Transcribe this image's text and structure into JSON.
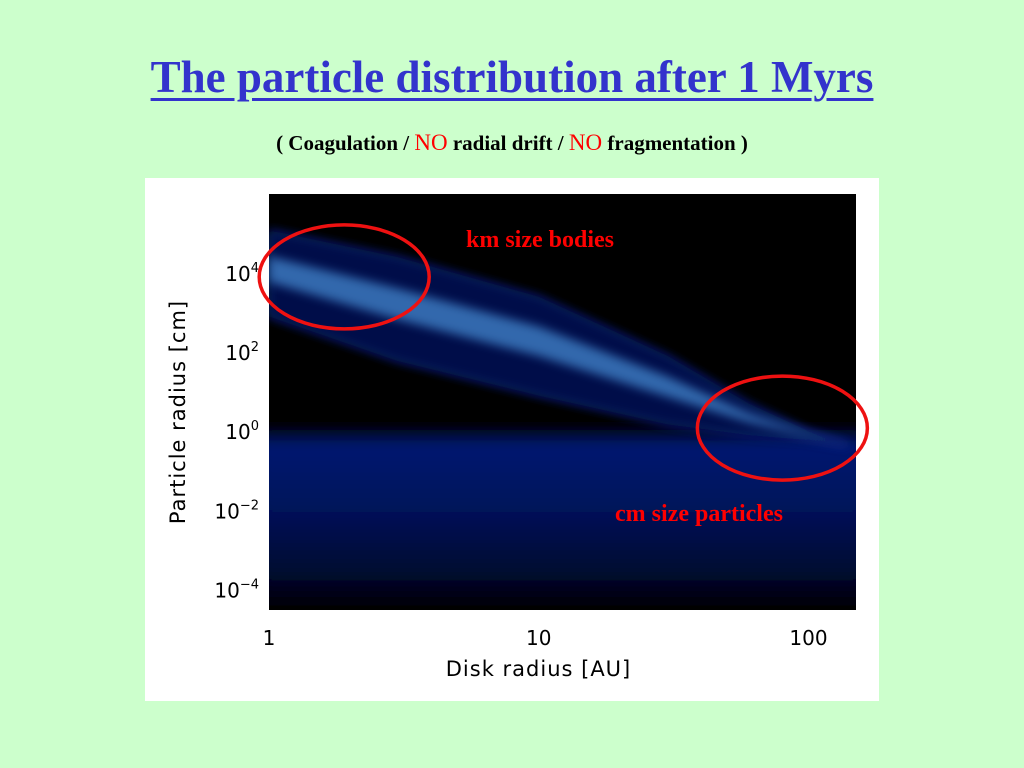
{
  "slide": {
    "title": "The particle distribution after 1 Myrs",
    "subtitle": {
      "open": "( Coagulation / ",
      "no_1": "NO",
      "mid": " radial drift / ",
      "no_2": "NO",
      "close": " fragmentation )"
    },
    "colors": {
      "background": "#ccffcc",
      "title": "#3333cc",
      "emphasis": "#ff0000",
      "annotation": "#ff0000"
    }
  },
  "chart_data": {
    "type": "heatmap",
    "title": "",
    "xlabel": "Disk radius [AU]",
    "ylabel": "Particle radius [cm]",
    "x_scale": "log",
    "y_scale": "log",
    "xlim": [
      1,
      150
    ],
    "ylim": [
      3e-05,
      1000000
    ],
    "x_ticks": [
      {
        "value": 1,
        "label": "1"
      },
      {
        "value": 10,
        "label": "10"
      },
      {
        "value": 100,
        "label": "100"
      }
    ],
    "y_ticks": [
      {
        "value": 0.0001,
        "base": "10",
        "exp": "−4"
      },
      {
        "value": 0.01,
        "base": "10",
        "exp": "−2"
      },
      {
        "value": 1,
        "base": "10",
        "exp": "0"
      },
      {
        "value": 100,
        "base": "10",
        "exp": "2"
      },
      {
        "value": 10000,
        "base": "10",
        "exp": "4"
      }
    ],
    "colormap": "black-blue-white",
    "background_color": "#000000",
    "features": {
      "upper_band": {
        "description": "bright band of large bodies decreasing with disk radius",
        "upper_edge": [
          [
            1,
            120000
          ],
          [
            3,
            25000
          ],
          [
            10,
            2500
          ],
          [
            30,
            80
          ],
          [
            60,
            5
          ],
          [
            100,
            1
          ],
          [
            140,
            0.5
          ]
        ],
        "lower_edge": [
          [
            1,
            800
          ],
          [
            3,
            60
          ],
          [
            10,
            8
          ],
          [
            30,
            1.5
          ],
          [
            60,
            0.8
          ],
          [
            100,
            0.6
          ],
          [
            140,
            0.4
          ]
        ]
      },
      "lower_population": {
        "description": "dim population of small particles",
        "upper_edge_y": 1.5,
        "lower_edge_y": 3e-05
      }
    },
    "annotations": [
      {
        "text": "km size bodies",
        "x": 1.9,
        "y": 15000
      },
      {
        "text": "cm size particles",
        "x": 75,
        "y": 0.6
      }
    ]
  }
}
